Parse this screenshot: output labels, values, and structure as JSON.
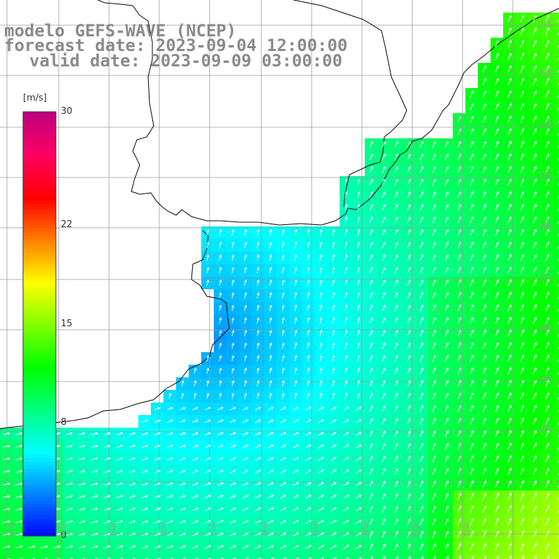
{
  "title": {
    "line1": "modelo GEFS-WAVE (NCEP)",
    "line2": "forecast date: 2023-09-04 12:00:00",
    "line3": "valid date: 2023-09-09 03:00:00"
  },
  "colorbar": {
    "units": "[m/s]",
    "ticks": [
      {
        "value": 30,
        "label": "30"
      },
      {
        "value": 22,
        "label": "22"
      },
      {
        "value": 15,
        "label": "15"
      },
      {
        "value": 8,
        "label": "8"
      },
      {
        "value": 0,
        "label": "0"
      }
    ],
    "min": 0,
    "max": 30,
    "colors": [
      "#0000ff",
      "#0080ff",
      "#00ffff",
      "#00ff80",
      "#00ff00",
      "#80ff00",
      "#ffff00",
      "#ff8000",
      "#ff0000",
      "#ff0060",
      "#c00080"
    ]
  },
  "map": {
    "land_color": "#ffffff",
    "grid_color": "#9a9a9a",
    "coast_color": "#000000",
    "arrow_color": "#ffffff",
    "lat_labels": [
      {
        "label": "32S",
        "lat": -32
      },
      {
        "label": "33S",
        "lat": -33
      },
      {
        "label": "34S",
        "lat": -34
      },
      {
        "label": "35S",
        "lat": -35
      },
      {
        "label": "36S",
        "lat": -36
      },
      {
        "label": "37S",
        "lat": -37
      },
      {
        "label": "38S",
        "lat": -38
      },
      {
        "label": "39S",
        "lat": -39
      },
      {
        "label": "40S",
        "lat": -40
      }
    ],
    "lon_labels": [
      {
        "label": "61W",
        "lon": -61
      },
      {
        "label": "60W",
        "lon": -60
      },
      {
        "label": "59W",
        "lon": -59
      },
      {
        "label": "58W",
        "lon": -58
      },
      {
        "label": "57W",
        "lon": -57
      },
      {
        "label": "56W",
        "lon": -56
      },
      {
        "label": "55W",
        "lon": -55
      },
      {
        "label": "54W",
        "lon": -54
      },
      {
        "label": "53W",
        "lon": -53
      },
      {
        "label": "52W",
        "lon": -52
      }
    ]
  }
}
